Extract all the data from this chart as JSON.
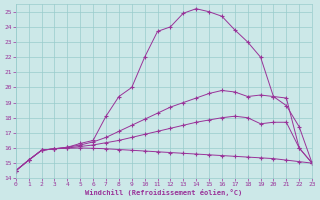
{
  "background_color": "#cce8e8",
  "grid_color": "#99cccc",
  "line_color": "#993399",
  "xlim": [
    0,
    23
  ],
  "ylim": [
    14,
    25.5
  ],
  "xticks": [
    0,
    1,
    2,
    3,
    4,
    5,
    6,
    7,
    8,
    9,
    10,
    11,
    12,
    13,
    14,
    15,
    16,
    17,
    18,
    19,
    20,
    21,
    22,
    23
  ],
  "yticks": [
    14,
    15,
    16,
    17,
    18,
    19,
    20,
    21,
    22,
    23,
    24,
    25
  ],
  "xlabel": "Windchill (Refroidissement éolien,°C)",
  "line1_x": [
    0,
    1,
    2,
    3,
    4,
    5,
    6,
    7,
    8,
    9,
    10,
    11,
    12,
    13,
    14,
    15,
    16,
    17,
    18,
    19,
    20,
    21,
    22,
    23
  ],
  "line1_y": [
    14.5,
    15.2,
    15.85,
    15.95,
    15.98,
    16.0,
    15.98,
    15.95,
    15.9,
    15.85,
    15.8,
    15.75,
    15.7,
    15.65,
    15.6,
    15.55,
    15.5,
    15.45,
    15.4,
    15.35,
    15.3,
    15.2,
    15.1,
    15.0
  ],
  "line2_x": [
    0,
    1,
    2,
    3,
    4,
    5,
    6,
    7,
    8,
    9,
    10,
    11,
    12,
    13,
    14,
    15,
    16,
    17,
    18,
    19,
    20,
    21,
    22,
    23
  ],
  "line2_y": [
    14.5,
    15.2,
    15.85,
    15.95,
    16.0,
    16.1,
    16.2,
    16.35,
    16.5,
    16.7,
    16.9,
    17.1,
    17.3,
    17.5,
    17.7,
    17.85,
    18.0,
    18.1,
    18.0,
    17.6,
    17.7,
    17.7,
    16.0,
    15.0
  ],
  "line3_x": [
    0,
    1,
    2,
    3,
    4,
    5,
    6,
    7,
    8,
    9,
    10,
    11,
    12,
    13,
    14,
    15,
    16,
    17,
    18,
    19,
    20,
    21,
    22,
    23
  ],
  "line3_y": [
    14.5,
    15.2,
    15.85,
    15.95,
    16.05,
    16.2,
    16.4,
    16.7,
    17.1,
    17.5,
    17.9,
    18.3,
    18.7,
    19.0,
    19.3,
    19.6,
    19.8,
    19.7,
    19.4,
    19.5,
    19.4,
    18.8,
    17.4,
    15.0
  ],
  "line4_x": [
    0,
    1,
    2,
    3,
    4,
    5,
    6,
    7,
    8,
    9,
    10,
    11,
    12,
    13,
    14,
    15,
    16,
    17,
    18,
    19,
    20,
    21,
    22,
    23
  ],
  "line4_y": [
    14.5,
    15.2,
    15.85,
    15.95,
    16.05,
    16.3,
    16.5,
    18.1,
    19.4,
    20.0,
    22.0,
    23.7,
    24.0,
    24.9,
    25.2,
    25.0,
    24.7,
    23.8,
    23.0,
    22.0,
    19.4,
    19.3,
    16.0,
    15.0
  ]
}
